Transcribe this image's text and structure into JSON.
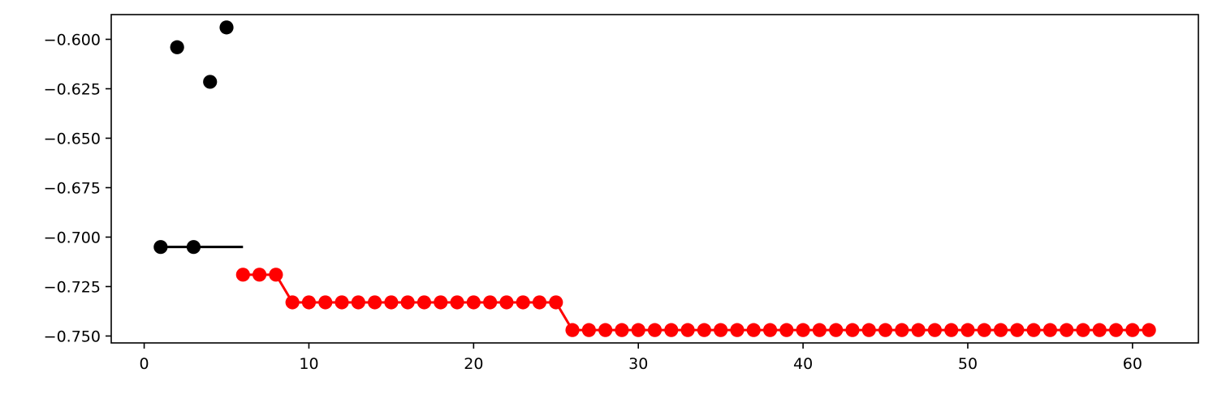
{
  "chart_data": {
    "type": "line",
    "title": "",
    "xlabel": "",
    "ylabel": "",
    "xlim": [
      -2,
      64
    ],
    "ylim": [
      -0.7535,
      -0.5875
    ],
    "x_ticks": [
      0,
      10,
      20,
      30,
      40,
      50,
      60
    ],
    "x_tick_labels": [
      "0",
      "10",
      "20",
      "30",
      "40",
      "50",
      "60"
    ],
    "y_ticks": [
      -0.6,
      -0.625,
      -0.65,
      -0.675,
      -0.7,
      -0.725,
      -0.75
    ],
    "y_tick_labels": [
      "−0.600",
      "−0.625",
      "−0.650",
      "−0.675",
      "−0.700",
      "−0.725",
      "−0.750"
    ],
    "grid": false,
    "legend": "none",
    "colors": {
      "initial_points": "#000000",
      "best_so_far_initial": "#000000",
      "optimization": "#ff0000"
    },
    "series": [
      {
        "role": "initial_points",
        "style": "markers",
        "color": "#000000",
        "points": [
          [
            1,
            -0.705
          ],
          [
            2,
            -0.604
          ],
          [
            3,
            -0.705
          ],
          [
            4,
            -0.6215
          ],
          [
            5,
            -0.594
          ]
        ]
      },
      {
        "role": "best_so_far_initial",
        "style": "line",
        "color": "#000000",
        "points": [
          [
            1,
            -0.705
          ],
          [
            6,
            -0.705
          ]
        ]
      },
      {
        "role": "optimization",
        "style": "line-markers",
        "color": "#ff0000",
        "points": [
          [
            6,
            -0.719
          ],
          [
            7,
            -0.719
          ],
          [
            8,
            -0.719
          ],
          [
            9,
            -0.733
          ],
          [
            10,
            -0.733
          ],
          [
            11,
            -0.733
          ],
          [
            12,
            -0.733
          ],
          [
            13,
            -0.733
          ],
          [
            14,
            -0.733
          ],
          [
            15,
            -0.733
          ],
          [
            16,
            -0.733
          ],
          [
            17,
            -0.733
          ],
          [
            18,
            -0.733
          ],
          [
            19,
            -0.733
          ],
          [
            20,
            -0.733
          ],
          [
            21,
            -0.733
          ],
          [
            22,
            -0.733
          ],
          [
            23,
            -0.733
          ],
          [
            24,
            -0.733
          ],
          [
            25,
            -0.733
          ],
          [
            26,
            -0.747
          ],
          [
            27,
            -0.747
          ],
          [
            28,
            -0.747
          ],
          [
            29,
            -0.747
          ],
          [
            30,
            -0.747
          ],
          [
            31,
            -0.747
          ],
          [
            32,
            -0.747
          ],
          [
            33,
            -0.747
          ],
          [
            34,
            -0.747
          ],
          [
            35,
            -0.747
          ],
          [
            36,
            -0.747
          ],
          [
            37,
            -0.747
          ],
          [
            38,
            -0.747
          ],
          [
            39,
            -0.747
          ],
          [
            40,
            -0.747
          ],
          [
            41,
            -0.747
          ],
          [
            42,
            -0.747
          ],
          [
            43,
            -0.747
          ],
          [
            44,
            -0.747
          ],
          [
            45,
            -0.747
          ],
          [
            46,
            -0.747
          ],
          [
            47,
            -0.747
          ],
          [
            48,
            -0.747
          ],
          [
            49,
            -0.747
          ],
          [
            50,
            -0.747
          ],
          [
            51,
            -0.747
          ],
          [
            52,
            -0.747
          ],
          [
            53,
            -0.747
          ],
          [
            54,
            -0.747
          ],
          [
            55,
            -0.747
          ],
          [
            56,
            -0.747
          ],
          [
            57,
            -0.747
          ],
          [
            58,
            -0.747
          ],
          [
            59,
            -0.747
          ],
          [
            60,
            -0.747
          ],
          [
            61,
            -0.747
          ]
        ]
      }
    ]
  }
}
